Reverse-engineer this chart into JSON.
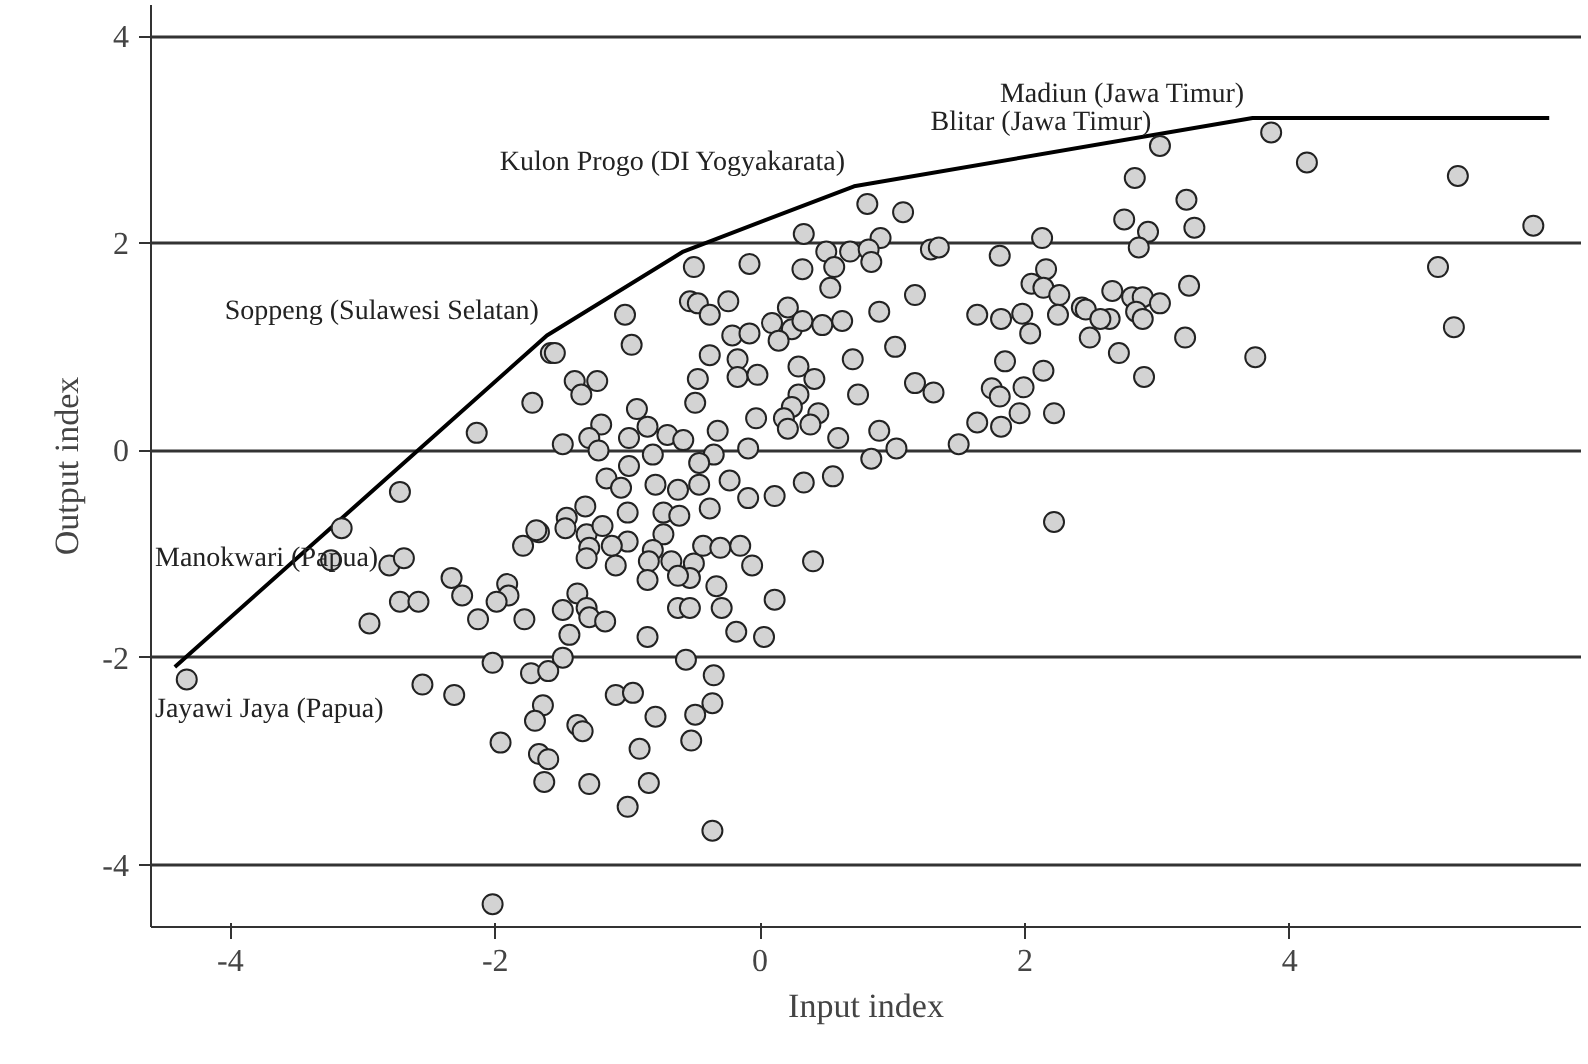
{
  "chart_data": {
    "type": "scatter",
    "xlabel": "Input index",
    "ylabel": "Output index",
    "xlim": [
      -4.6,
      6.2
    ],
    "ylim": [
      -4.6,
      4.3
    ],
    "xticks": [
      -4,
      -2,
      0,
      2,
      4
    ],
    "yticks": [
      -4,
      -2,
      0,
      2,
      4
    ],
    "grid": "y",
    "marker": "circle",
    "series": [
      {
        "color": "#d3d3d3",
        "x": [
          -1.58,
          -1.72,
          -2.14,
          -2.72,
          -3.16,
          -3.24,
          -2.8,
          -2.69,
          -2.33,
          -2.25,
          -1.91,
          -1.9,
          -1.99,
          -2.72,
          -2.58,
          -2.95,
          -2.13,
          -1.78,
          -1.79,
          -1.67,
          -4.33,
          -2.55,
          -2.31,
          -2.02,
          -1.73,
          -1.64,
          -1.7,
          -1.96,
          -1.67,
          -1.63,
          -2.02,
          -0.5,
          -0.08,
          -1.02,
          -0.53,
          -0.47,
          -0.38,
          -0.24,
          -1.55,
          -0.97,
          -0.21,
          -0.08,
          -0.38,
          -0.17,
          -0.17,
          -0.47,
          -1.4,
          -1.23,
          -1.35,
          -0.49,
          -0.93,
          -1.2,
          -0.85,
          -0.7,
          -1.29,
          -1.49,
          -0.99,
          -0.58,
          -0.32,
          -1.22,
          -0.81,
          -0.35,
          -0.09,
          -0.46,
          -0.99,
          -1.16,
          -0.79,
          -0.62,
          -0.46,
          -0.23,
          -0.09,
          -1.05,
          -1.32,
          -1.0,
          -0.73,
          -0.61,
          -0.38,
          -1.46,
          -1.69,
          -1.47,
          -1.31,
          -1.19,
          -1.0,
          -0.73,
          -1.29,
          -1.12,
          -1.31,
          -1.09,
          -0.81,
          -0.84,
          -0.67,
          -0.5,
          -0.43,
          -0.3,
          -0.15,
          -0.06,
          -0.85,
          -0.53,
          -0.33,
          -0.62,
          -1.38,
          -1.49,
          -1.31,
          -1.29,
          -1.17,
          -1.44,
          -0.62,
          -0.53,
          -0.29,
          -0.85,
          -0.18,
          -1.49,
          -1.6,
          -0.56,
          -0.35,
          -1.09,
          -0.96,
          -1.6,
          -1.38,
          -1.34,
          -0.79,
          -1.29,
          -0.91,
          -0.84,
          -1.0,
          -0.36,
          -0.49,
          -0.52,
          -0.36,
          0.03,
          0.33,
          0.81,
          1.08,
          0.91,
          0.5,
          0.68,
          0.82,
          0.84,
          0.56,
          0.32,
          1.29,
          1.35,
          1.81,
          2.13,
          2.16,
          2.05,
          2.14,
          2.26,
          0.53,
          1.17,
          0.9,
          0.21,
          0.09,
          0.24,
          0.32,
          0.47,
          0.62,
          0.14,
          1.64,
          1.82,
          1.98,
          2.04,
          2.25,
          2.43,
          1.02,
          0.7,
          0.29,
          0.41,
          -0.02,
          1.85,
          2.14,
          1.17,
          1.31,
          0.74,
          0.29,
          1.75,
          1.81,
          1.99,
          0.24,
          0.44,
          0.18,
          -0.03,
          0.38,
          0.21,
          1.64,
          1.82,
          1.96,
          2.22,
          0.59,
          0.9,
          0.84,
          1.03,
          1.5,
          0.33,
          0.55,
          0.11,
          0.4,
          2.22,
          0.11,
          3.02,
          3.86,
          4.13,
          5.27,
          2.83,
          3.22,
          2.75,
          2.93,
          2.86,
          3.28,
          5.84,
          5.12,
          5.24,
          3.24,
          2.66,
          2.81,
          2.89,
          3.02,
          2.46,
          2.84,
          2.89,
          2.64,
          2.57,
          2.49,
          2.71,
          3.21,
          2.9,
          3.74
        ],
        "values": [
          0.94,
          0.46,
          0.17,
          -0.4,
          -0.75,
          -1.06,
          -1.11,
          -1.04,
          -1.23,
          -1.4,
          -1.29,
          -1.4,
          -1.46,
          -1.46,
          -1.46,
          -1.67,
          -1.63,
          -1.63,
          -0.92,
          -0.79,
          -2.21,
          -2.26,
          -2.36,
          -2.05,
          -2.15,
          -2.46,
          -2.61,
          -2.82,
          -2.93,
          -3.2,
          -4.38,
          1.77,
          1.8,
          1.31,
          1.44,
          1.42,
          1.31,
          1.44,
          0.94,
          1.02,
          1.11,
          1.13,
          0.92,
          0.88,
          0.71,
          0.69,
          0.67,
          0.67,
          0.54,
          0.46,
          0.4,
          0.25,
          0.23,
          0.15,
          0.12,
          0.06,
          0.12,
          0.1,
          0.19,
          0.0,
          -0.04,
          -0.04,
          0.02,
          -0.12,
          -0.15,
          -0.27,
          -0.33,
          -0.38,
          -0.33,
          -0.29,
          -0.46,
          -0.36,
          -0.54,
          -0.6,
          -0.6,
          -0.63,
          -0.56,
          -0.65,
          -0.77,
          -0.75,
          -0.81,
          -0.73,
          -0.88,
          -0.81,
          -0.94,
          -0.92,
          -1.04,
          -1.11,
          -0.96,
          -1.07,
          -1.07,
          -1.09,
          -0.92,
          -0.94,
          -0.92,
          -1.11,
          -1.25,
          -1.23,
          -1.31,
          -1.21,
          -1.38,
          -1.54,
          -1.52,
          -1.61,
          -1.65,
          -1.78,
          -1.52,
          -1.52,
          -1.52,
          -1.8,
          -1.75,
          -2.0,
          -2.13,
          -2.02,
          -2.17,
          -2.36,
          -2.34,
          -2.98,
          -2.65,
          -2.71,
          -2.57,
          -3.22,
          -2.88,
          -3.21,
          -3.44,
          -2.44,
          -2.55,
          -2.8,
          -3.67,
          -1.8,
          2.09,
          2.38,
          2.3,
          2.05,
          1.92,
          1.92,
          1.94,
          1.82,
          1.77,
          1.75,
          1.94,
          1.96,
          1.88,
          2.05,
          1.75,
          1.61,
          1.57,
          1.5,
          1.57,
          1.5,
          1.34,
          1.38,
          1.23,
          1.17,
          1.25,
          1.21,
          1.25,
          1.06,
          1.31,
          1.27,
          1.32,
          1.13,
          1.31,
          1.38,
          1.0,
          0.88,
          0.81,
          0.69,
          0.73,
          0.86,
          0.77,
          0.65,
          0.56,
          0.54,
          0.54,
          0.6,
          0.52,
          0.61,
          0.42,
          0.36,
          0.31,
          0.31,
          0.25,
          0.21,
          0.27,
          0.23,
          0.36,
          0.36,
          0.12,
          0.19,
          -0.08,
          0.02,
          0.06,
          -0.31,
          -0.25,
          -0.44,
          -1.07,
          -0.69,
          -1.44,
          2.94,
          3.07,
          2.78,
          2.65,
          2.63,
          2.42,
          2.23,
          2.11,
          1.96,
          2.15,
          2.17,
          1.77,
          1.19,
          1.59,
          1.54,
          1.48,
          1.48,
          1.42,
          1.36,
          1.34,
          1.27,
          1.27,
          1.27,
          1.09,
          0.94,
          1.09,
          0.71,
          0.9
        ]
      },
      {
        "type": "line",
        "color": "#000000",
        "marker": "none",
        "line_style": "solid",
        "x": [
          -4.42,
          -1.61,
          -0.58,
          0.71,
          3.72,
          5.96
        ],
        "values": [
          -2.09,
          1.11,
          1.92,
          2.55,
          3.21,
          3.21
        ]
      }
    ],
    "annotations": [
      {
        "text": "Jayawi Jaya (Papua)",
        "x": -4.33,
        "y": -2.21
      },
      {
        "text": "Manokwari (Papua)",
        "x": -3.16,
        "y": -0.75
      },
      {
        "text": "Soppeng (Sulawesi Selatan)",
        "x": -1.61,
        "y": 1.11
      },
      {
        "text": "Kulon Progo (DI Yogyakarata)",
        "x": 0.71,
        "y": 2.55
      },
      {
        "text": "Blitar (Jawa Timur)",
        "x": 3.02,
        "y": 2.94
      },
      {
        "text": "Madiun (Jawa Timur)",
        "x": 3.72,
        "y": 3.21
      }
    ]
  }
}
